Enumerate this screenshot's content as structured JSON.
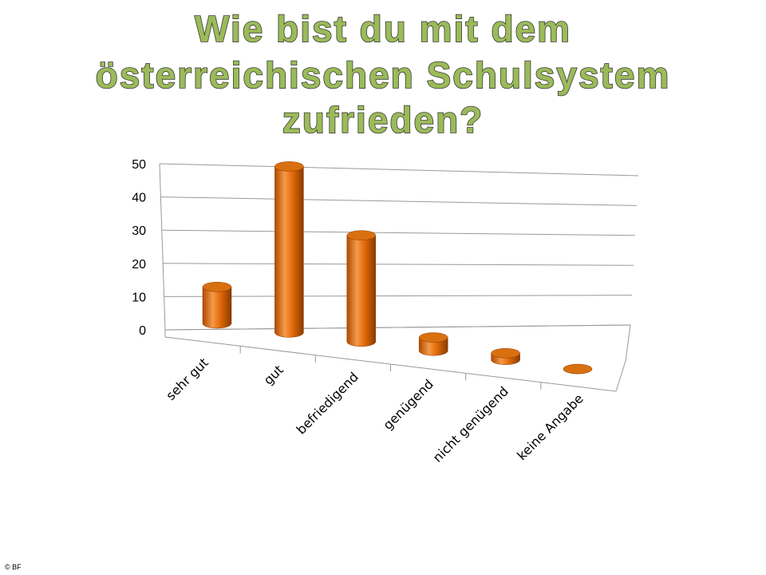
{
  "chart_data": {
    "type": "bar3d",
    "title": [
      "Wie bist du mit dem",
      "österreichischen Schulsystem",
      "zufrieden?"
    ],
    "categories": [
      "sehr gut",
      "gut",
      "befriedigend",
      "genügend",
      "nicht genügend",
      "keine Angabe"
    ],
    "values": [
      11,
      50,
      32,
      4,
      2,
      0
    ],
    "color": "#e46c0a",
    "ylim": [
      0,
      50
    ],
    "yticks": [
      0,
      10,
      20,
      30,
      40,
      50
    ],
    "grid": true,
    "footer": "© BF"
  }
}
